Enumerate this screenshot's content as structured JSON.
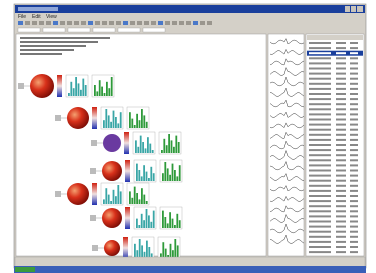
{
  "window": {
    "menu": [
      "File",
      "Edit",
      "View"
    ]
  }
}
